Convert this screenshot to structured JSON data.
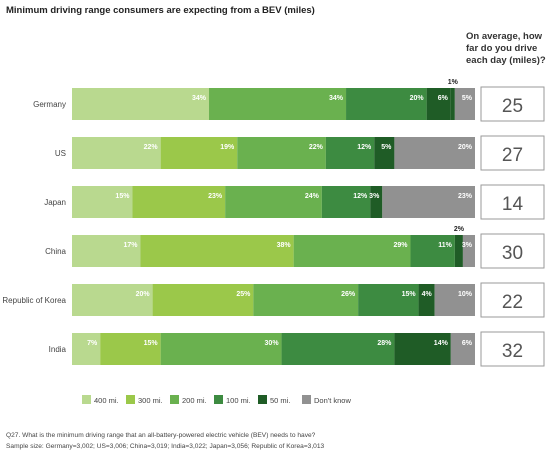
{
  "title": "Minimum driving range consumers are expecting from a BEV (miles)",
  "side_question": "On average, how far do you drive each day (miles)?",
  "footnote_question": "Q27. What is the minimum driving range that an all-battery-powered electric vehicle (BEV) needs to have?",
  "footnote_sample": "Sample size: Germany=3,002; US=3,006; China=3,019; India=3,022; Japan=3,056; Republic of Korea=3,013",
  "colors": {
    "400 mi.": "#b9d98f",
    "300 mi.": "#9bc84a",
    "200 mi.": "#6ab14f",
    "100 mi.": "#3d8b41",
    "50 mi.": "#1f5c26",
    "Don't know": "#919191"
  },
  "chart_data": {
    "type": "bar",
    "orientation": "horizontal",
    "stacked": true,
    "percent_stacked": true,
    "title": "Minimum driving range consumers are expecting from a BEV (miles)",
    "categories": [
      "Germany",
      "US",
      "Japan",
      "China",
      "Republic of Korea",
      "India"
    ],
    "series": [
      {
        "name": "400 mi.",
        "values": [
          34,
          22,
          15,
          17,
          20,
          7
        ]
      },
      {
        "name": "300 mi.",
        "values": [
          0,
          19,
          23,
          38,
          25,
          15
        ]
      },
      {
        "name": "200 mi.",
        "values": [
          34,
          22,
          24,
          29,
          26,
          30
        ]
      },
      {
        "name": "100 mi.",
        "values": [
          20,
          12,
          12,
          11,
          15,
          28
        ]
      },
      {
        "name": "50 mi.",
        "values": [
          6,
          5,
          3,
          0,
          4,
          14
        ]
      },
      {
        "name": "Don't know",
        "values": [
          5,
          20,
          23,
          3,
          10,
          6
        ]
      }
    ],
    "extra_series": [
      {
        "name": "1% segment",
        "category": "Germany",
        "value": 1,
        "label": "1%"
      },
      {
        "name": "2% segment",
        "category": "China",
        "value": 2,
        "label": "2%"
      }
    ],
    "daily_driving_miles": [
      25,
      27,
      14,
      30,
      22,
      32
    ],
    "legend": [
      "400 mi.",
      "300 mi.",
      "200 mi.",
      "100 mi.",
      "50 mi.",
      "Don't know"
    ],
    "legend_position": "bottom"
  }
}
